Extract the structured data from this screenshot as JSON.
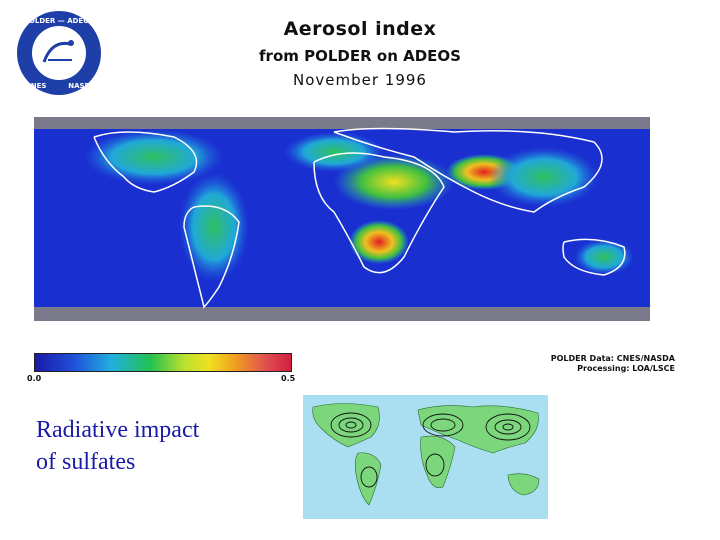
{
  "header": {
    "title": "Aerosol index",
    "subtitle": "from POLDER on ADEOS",
    "date": "November 1996"
  },
  "logo": {
    "top_text": "POLDER — ADEOS",
    "left_text": "CNES",
    "right_text": "NASDA"
  },
  "colorbar": {
    "min_label": "0.0",
    "max_label": "0.5"
  },
  "credit": {
    "line1": "POLDER Data: CNES/NASDA",
    "line2": "Processing: LOA/LSCE"
  },
  "caption": {
    "line1": "Radiative impact",
    "line2": "of sulfates"
  },
  "colors": {
    "ocean_deep": "#1a1aa8",
    "caption_text": "#1a1aa8",
    "sulfate_ocean": "#a9dff0",
    "sulfate_land": "#7cd67c"
  }
}
